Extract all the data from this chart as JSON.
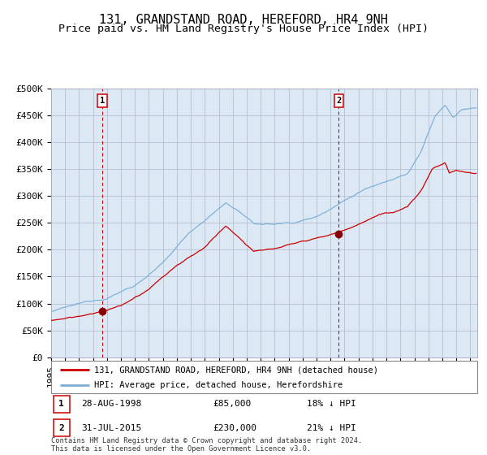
{
  "title": "131, GRANDSTAND ROAD, HEREFORD, HR4 9NH",
  "subtitle": "Price paid vs. HM Land Registry's House Price Index (HPI)",
  "background_color": "#dce9f5",
  "ylim": [
    0,
    500000
  ],
  "yticks": [
    0,
    50000,
    100000,
    150000,
    200000,
    250000,
    300000,
    350000,
    400000,
    450000,
    500000
  ],
  "ytick_labels": [
    "£0",
    "£50K",
    "£100K",
    "£150K",
    "£200K",
    "£250K",
    "£300K",
    "£350K",
    "£400K",
    "£450K",
    "£500K"
  ],
  "xlim_start": 1995.0,
  "xlim_end": 2025.5,
  "sale1_year": 1998.65,
  "sale1_price": 85000,
  "sale2_year": 2015.58,
  "sale2_price": 230000,
  "red_line_color": "#cc0000",
  "blue_line_color": "#7aaed6",
  "dashed_line_color": "#cc0000",
  "marker_color": "#880000",
  "legend_label_red": "131, GRANDSTAND ROAD, HEREFORD, HR4 9NH (detached house)",
  "legend_label_blue": "HPI: Average price, detached house, Herefordshire",
  "table_row1": [
    "1",
    "28-AUG-1998",
    "£85,000",
    "18% ↓ HPI"
  ],
  "table_row2": [
    "2",
    "31-JUL-2015",
    "£230,000",
    "21% ↓ HPI"
  ],
  "footer": "Contains HM Land Registry data © Crown copyright and database right 2024.\nThis data is licensed under the Open Government Licence v3.0.",
  "title_fontsize": 11,
  "subtitle_fontsize": 9.5,
  "tick_fontsize": 8
}
